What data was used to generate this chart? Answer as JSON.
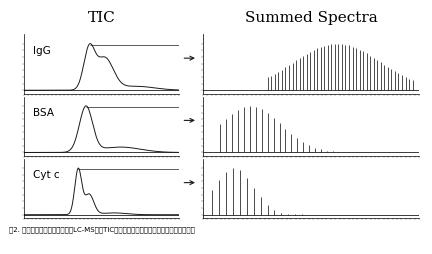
{
  "title_tic": "TIC",
  "title_spectra": "Summed Spectra",
  "labels": [
    "IgG",
    "BSA",
    "Cyt c"
  ],
  "caption": "图2. 三种测试蛋白质的在线脱盐LC-MS分析TIC图谱（图左）及质谱峰图（图右）固拖生物",
  "bg_color": "#ffffff",
  "line_color": "#1a1a1a",
  "dashed_color": "#aaaaaa",
  "fig_width": 4.32,
  "fig_height": 2.54,
  "dpi": 100
}
